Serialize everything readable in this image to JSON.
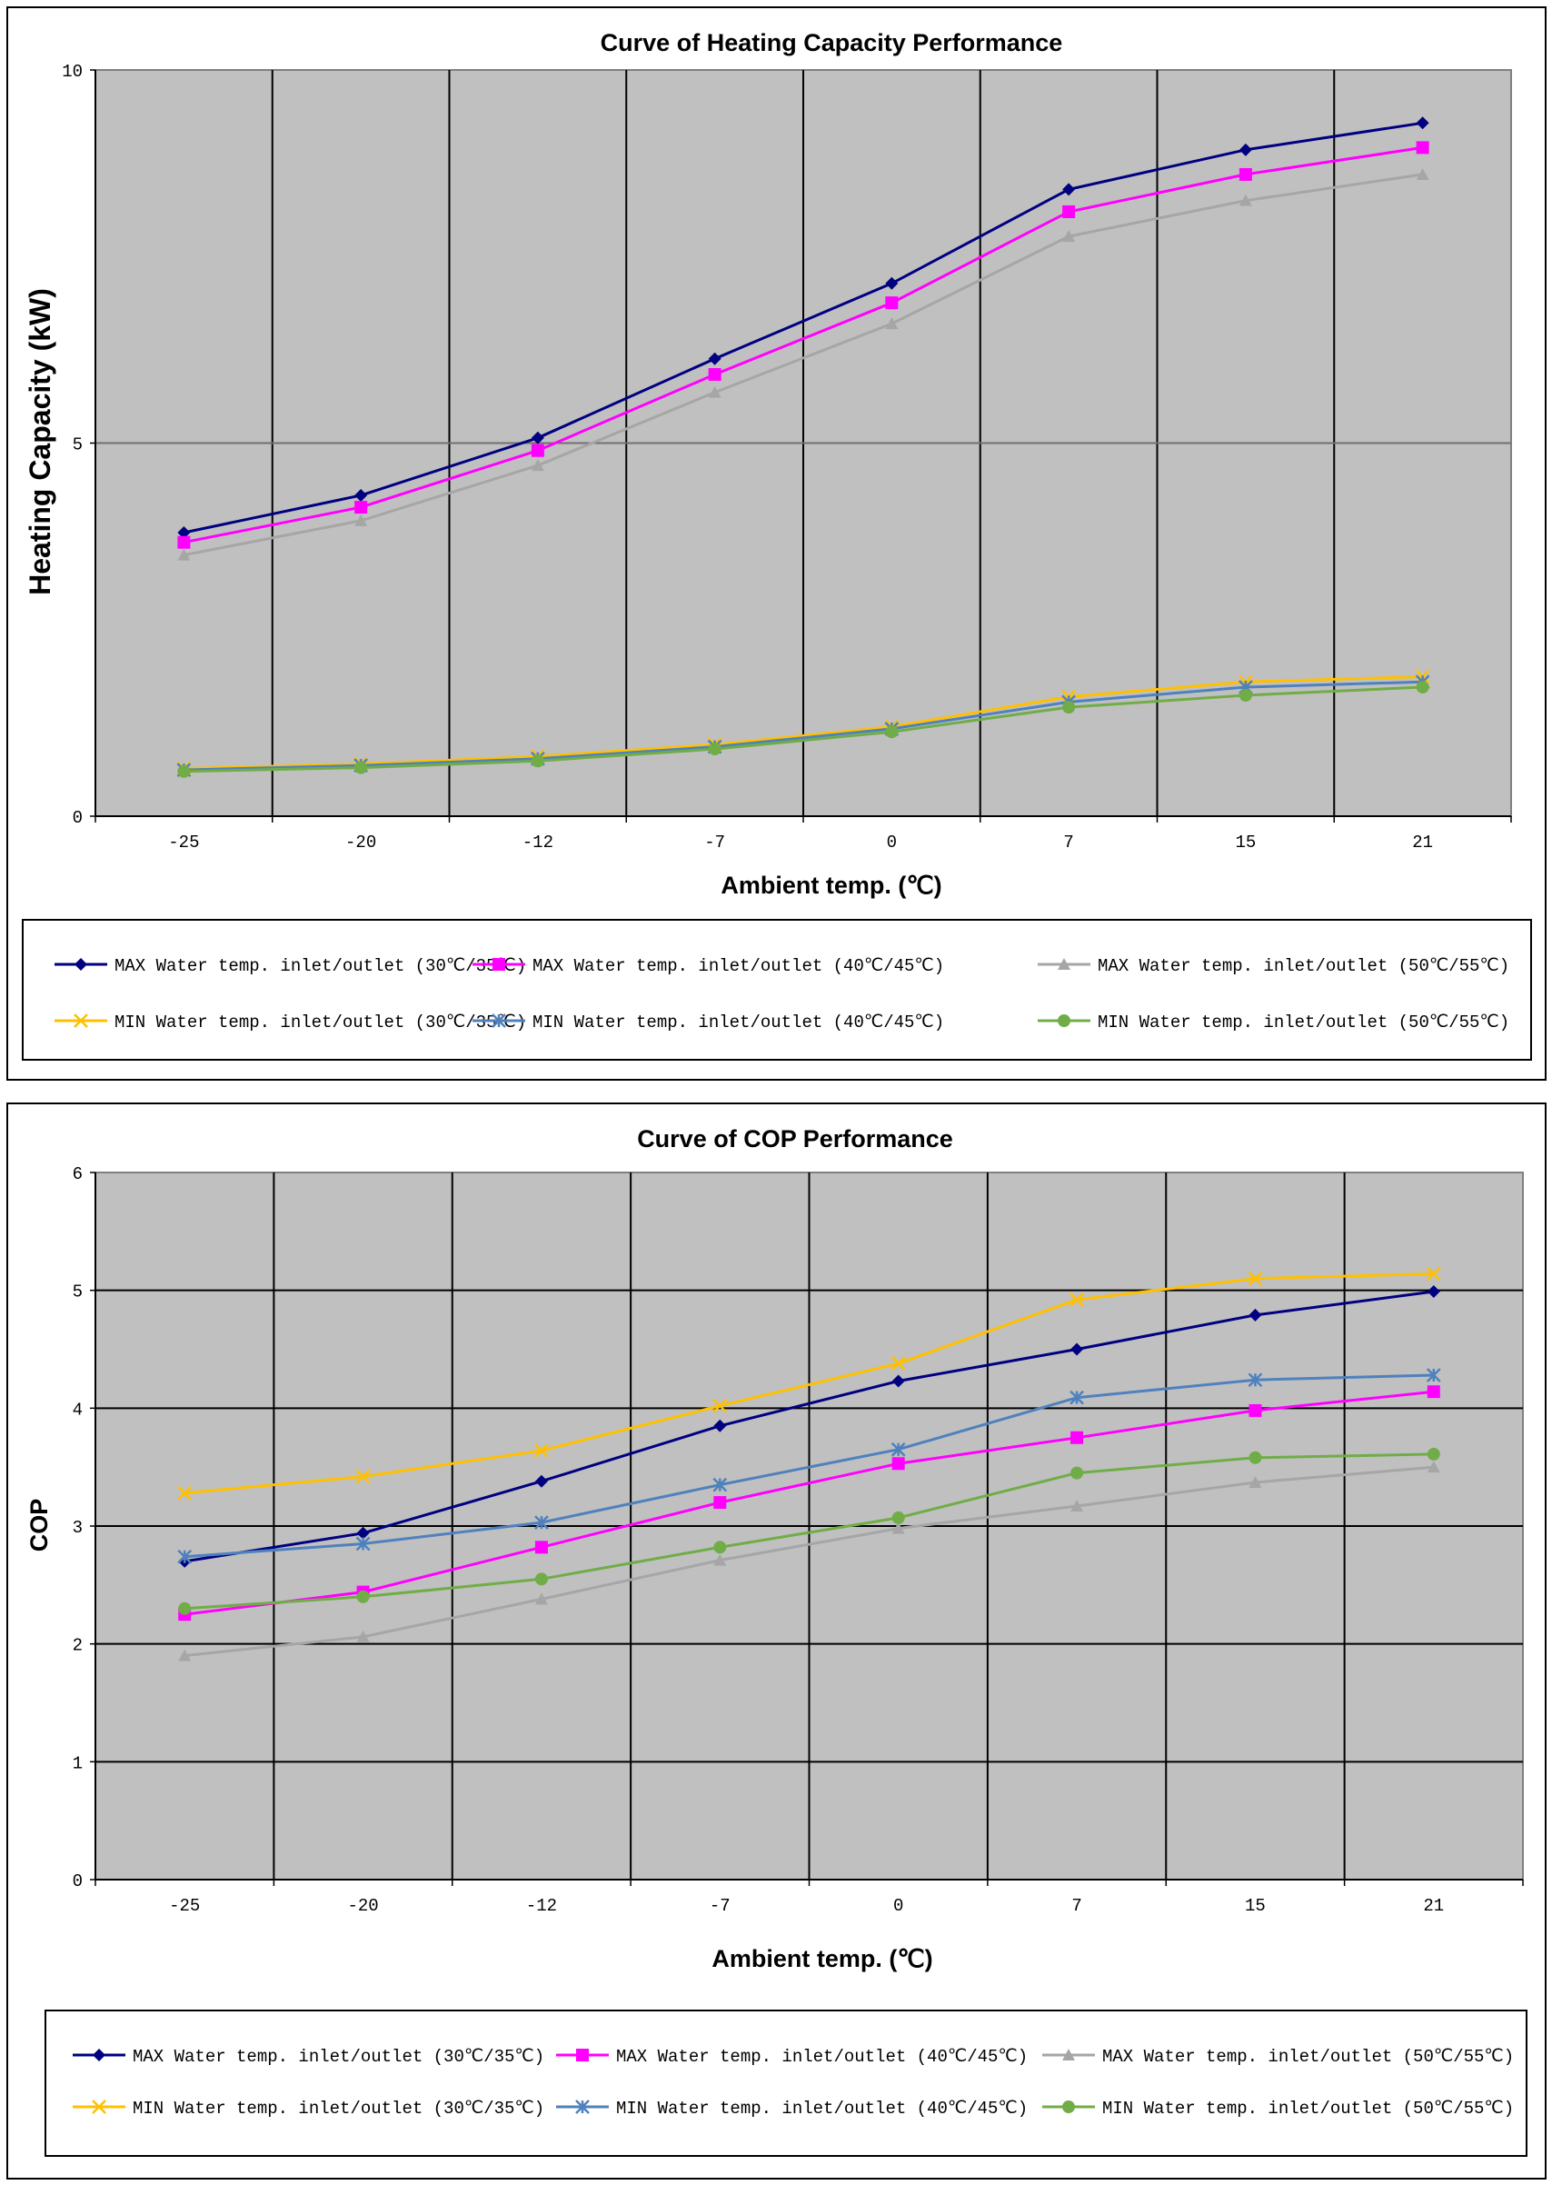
{
  "chart_data": [
    {
      "type": "line",
      "title": "Curve of Heating Capacity Performance",
      "xlabel": "Ambient temp. (℃)",
      "ylabel": "Heating Capacity (kW)",
      "categories": [
        "-25",
        "-20",
        "-12",
        "-7",
        "0",
        "7",
        "15",
        "21"
      ],
      "ylim": [
        0,
        10
      ],
      "yticks": [
        "0",
        "5",
        "10"
      ],
      "grid": "vertical-and-horizontal",
      "legend_position": "bottom",
      "series": [
        {
          "name": "MAX Water temp. inlet/outlet (30℃/35℃)",
          "color": "#000080",
          "marker": "diamond",
          "values": [
            3.8,
            4.3,
            5.07,
            6.13,
            7.14,
            8.4,
            8.93,
            9.29
          ]
        },
        {
          "name": "MAX Water temp. inlet/outlet (40℃/45℃)",
          "color": "#FF00FF",
          "marker": "square",
          "values": [
            3.67,
            4.14,
            4.9,
            5.92,
            6.88,
            8.1,
            8.6,
            8.96
          ]
        },
        {
          "name": "MAX Water temp. inlet/outlet (50℃/55℃)",
          "color": "#A6A6A6",
          "marker": "triangle",
          "values": [
            3.5,
            3.96,
            4.7,
            5.68,
            6.6,
            7.77,
            8.25,
            8.6
          ]
        },
        {
          "name": "MIN Water temp. inlet/outlet (30℃/35℃)",
          "color": "#FFC000",
          "marker": "x",
          "values": [
            0.64,
            0.7,
            0.8,
            0.96,
            1.2,
            1.6,
            1.8,
            1.87
          ]
        },
        {
          "name": "MIN Water temp. inlet/outlet (40℃/45℃)",
          "color": "#4F81BD",
          "marker": "star",
          "values": [
            0.62,
            0.68,
            0.77,
            0.93,
            1.17,
            1.53,
            1.73,
            1.8
          ]
        },
        {
          "name": "MIN Water temp. inlet/outlet (50℃/55℃)",
          "color": "#70AD47",
          "marker": "circle",
          "values": [
            0.6,
            0.65,
            0.74,
            0.9,
            1.13,
            1.46,
            1.62,
            1.73
          ]
        }
      ]
    },
    {
      "type": "line",
      "title": "Curve of COP Performance",
      "xlabel": "Ambient temp. (℃)",
      "ylabel": "COP",
      "categories": [
        "-25",
        "-20",
        "-12",
        "-7",
        "0",
        "7",
        "15",
        "21"
      ],
      "ylim": [
        0,
        6
      ],
      "yticks": [
        "0",
        "1",
        "2",
        "3",
        "4",
        "5",
        "6"
      ],
      "grid": "vertical-and-horizontal",
      "legend_position": "bottom",
      "series": [
        {
          "name": "MAX Water temp. inlet/outlet (30℃/35℃)",
          "color": "#000080",
          "marker": "diamond",
          "values": [
            2.7,
            2.94,
            3.38,
            3.85,
            4.23,
            4.5,
            4.79,
            4.99
          ]
        },
        {
          "name": "MAX Water temp. inlet/outlet (40℃/45℃)",
          "color": "#FF00FF",
          "marker": "square",
          "values": [
            2.25,
            2.44,
            2.82,
            3.2,
            3.53,
            3.75,
            3.98,
            4.14
          ]
        },
        {
          "name": "MAX Water temp. inlet/outlet (50℃/55℃)",
          "color": "#A6A6A6",
          "marker": "triangle",
          "values": [
            1.9,
            2.06,
            2.38,
            2.71,
            2.98,
            3.17,
            3.37,
            3.5
          ]
        },
        {
          "name": "MIN Water temp. inlet/outlet (30℃/35℃)",
          "color": "#FFC000",
          "marker": "x",
          "values": [
            3.28,
            3.42,
            3.64,
            4.02,
            4.38,
            4.92,
            5.1,
            5.14
          ]
        },
        {
          "name": "MIN Water temp. inlet/outlet (40℃/45℃)",
          "color": "#4F81BD",
          "marker": "star",
          "values": [
            2.74,
            2.85,
            3.03,
            3.35,
            3.65,
            4.09,
            4.24,
            4.28
          ]
        },
        {
          "name": "MIN Water temp. inlet/outlet (50℃/55℃)",
          "color": "#70AD47",
          "marker": "circle",
          "values": [
            2.3,
            2.4,
            2.55,
            2.82,
            3.07,
            3.45,
            3.58,
            3.61
          ]
        }
      ]
    }
  ]
}
